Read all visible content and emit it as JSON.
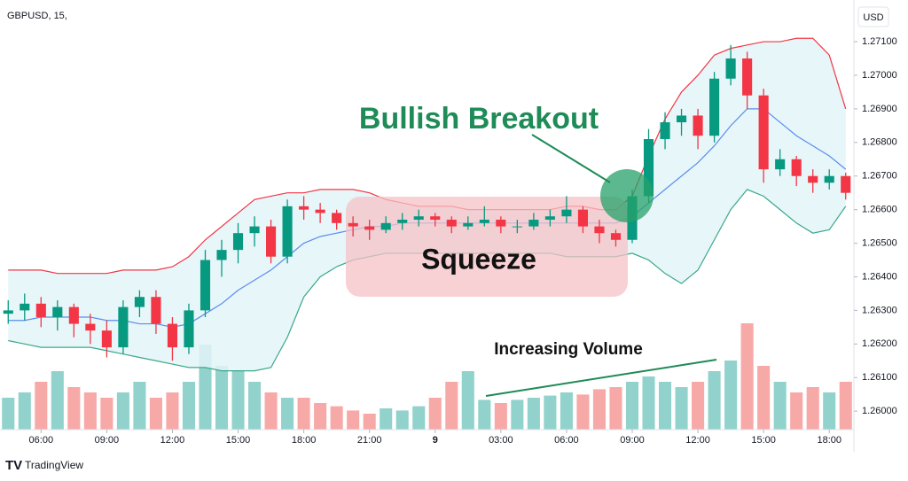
{
  "header": {
    "symbol": "GBPUSD, 15,",
    "currency": "USD"
  },
  "footer": {
    "brand": "TradingView"
  },
  "chart_data": {
    "type": "candlestick",
    "xlim": [
      -0.5,
      51.5
    ],
    "xticks": [
      {
        "value": 2,
        "label": "06:00"
      },
      {
        "value": 6,
        "label": "09:00"
      },
      {
        "value": 10,
        "label": "12:00"
      },
      {
        "value": 14,
        "label": "15:00"
      },
      {
        "value": 18,
        "label": "18:00"
      },
      {
        "value": 22,
        "label": "21:00"
      },
      {
        "value": 26,
        "label": "9"
      },
      {
        "value": 30,
        "label": "03:00"
      },
      {
        "value": 34,
        "label": "06:00"
      },
      {
        "value": 38,
        "label": "09:00"
      },
      {
        "value": 42,
        "label": "12:00"
      },
      {
        "value": 46,
        "label": "15:00"
      },
      {
        "value": 50,
        "label": "18:00"
      }
    ],
    "ylim": [
      1.25945,
      1.27203
    ],
    "yticks": [
      {
        "value": 1.26,
        "label": "1.26000"
      },
      {
        "value": 1.261,
        "label": "1.26100"
      },
      {
        "value": 1.262,
        "label": "1.26200"
      },
      {
        "value": 1.263,
        "label": "1.26300"
      },
      {
        "value": 1.264,
        "label": "1.26400"
      },
      {
        "value": 1.265,
        "label": "1.26500"
      },
      {
        "value": 1.266,
        "label": "1.26600"
      },
      {
        "value": 1.267,
        "label": "1.26700"
      },
      {
        "value": 1.268,
        "label": "1.26800"
      },
      {
        "value": 1.269,
        "label": "1.26900"
      },
      {
        "value": 1.27,
        "label": "1.27000"
      },
      {
        "value": 1.271,
        "label": "1.27100"
      }
    ],
    "grid": false,
    "up_color": "#089981",
    "down_color": "#f23645",
    "volume_up_color": "#92d2cc",
    "volume_down_color": "#f7a9a7",
    "volume_lim": [
      0,
      100
    ],
    "open": [
      1.2629,
      1.263,
      1.2632,
      1.2628,
      1.2631,
      1.2626,
      1.2624,
      1.2619,
      1.2631,
      1.2634,
      1.2626,
      1.2619,
      1.263,
      1.2645,
      1.2648,
      1.2653,
      1.2655,
      1.2646,
      1.2661,
      1.266,
      1.2659,
      1.2656,
      1.2655,
      1.2654,
      1.2656,
      1.2657,
      1.2658,
      1.2657,
      1.2655,
      1.2656,
      1.2657,
      1.2655,
      1.2655,
      1.2657,
      1.2658,
      1.266,
      1.2655,
      1.2653,
      1.2651,
      1.2664,
      1.2681,
      1.2686,
      1.2688,
      1.2682,
      1.2699,
      1.2705,
      1.2694,
      1.2672,
      1.2675,
      1.267,
      1.2668,
      1.267
    ],
    "high": [
      1.2633,
      1.2635,
      1.2634,
      1.2633,
      1.2632,
      1.2629,
      1.2627,
      1.2633,
      1.2636,
      1.2636,
      1.2628,
      1.2632,
      1.2648,
      1.2651,
      1.2656,
      1.2658,
      1.2657,
      1.2663,
      1.2664,
      1.2662,
      1.266,
      1.2658,
      1.2657,
      1.2658,
      1.2659,
      1.266,
      1.2659,
      1.2658,
      1.2658,
      1.2661,
      1.2658,
      1.2657,
      1.2659,
      1.266,
      1.2664,
      1.2661,
      1.2657,
      1.2654,
      1.2666,
      1.2684,
      1.2689,
      1.269,
      1.269,
      1.2701,
      1.2709,
      1.2707,
      1.2696,
      1.2678,
      1.2676,
      1.2672,
      1.2672,
      1.2671
    ],
    "low": [
      1.2626,
      1.2627,
      1.2625,
      1.2624,
      1.2622,
      1.262,
      1.2616,
      1.2617,
      1.2628,
      1.2623,
      1.2615,
      1.2617,
      1.2628,
      1.264,
      1.2644,
      1.2649,
      1.2644,
      1.2644,
      1.2657,
      1.2656,
      1.2654,
      1.2652,
      1.2651,
      1.2653,
      1.2654,
      1.2655,
      1.2655,
      1.2653,
      1.2654,
      1.2655,
      1.2653,
      1.2653,
      1.2654,
      1.2655,
      1.2656,
      1.2653,
      1.265,
      1.2649,
      1.265,
      1.2662,
      1.2678,
      1.2682,
      1.2678,
      1.268,
      1.2697,
      1.269,
      1.2668,
      1.267,
      1.2667,
      1.2665,
      1.2666,
      1.2663
    ],
    "close": [
      1.263,
      1.2632,
      1.2628,
      1.2631,
      1.2626,
      1.2624,
      1.2619,
      1.2631,
      1.2634,
      1.2626,
      1.2619,
      1.263,
      1.2645,
      1.2648,
      1.2653,
      1.2655,
      1.2646,
      1.2661,
      1.266,
      1.2659,
      1.2656,
      1.2655,
      1.2654,
      1.2656,
      1.2657,
      1.2658,
      1.2657,
      1.2655,
      1.2656,
      1.2657,
      1.2655,
      1.2655,
      1.2657,
      1.2658,
      1.266,
      1.2655,
      1.2653,
      1.2651,
      1.2664,
      1.2681,
      1.2686,
      1.2688,
      1.2682,
      1.2699,
      1.2705,
      1.2694,
      1.2672,
      1.2675,
      1.267,
      1.2668,
      1.267,
      1.2665
    ],
    "volume": [
      30,
      35,
      45,
      55,
      40,
      35,
      30,
      35,
      45,
      30,
      35,
      45,
      80,
      60,
      55,
      45,
      35,
      30,
      30,
      25,
      22,
      18,
      15,
      20,
      18,
      22,
      30,
      45,
      55,
      28,
      25,
      28,
      30,
      32,
      35,
      33,
      38,
      40,
      45,
      50,
      45,
      40,
      45,
      55,
      65,
      100,
      60,
      45,
      35,
      40,
      35,
      45
    ],
    "upper_band": {
      "color": "#f23645",
      "values": [
        1.2642,
        1.2642,
        1.2642,
        1.2641,
        1.2641,
        1.2641,
        1.2641,
        1.2642,
        1.2642,
        1.2642,
        1.2643,
        1.2646,
        1.2651,
        1.2655,
        1.2659,
        1.2663,
        1.2664,
        1.2665,
        1.2665,
        1.2666,
        1.2666,
        1.2666,
        1.2665,
        1.2663,
        1.2662,
        1.2661,
        1.2661,
        1.2661,
        1.266,
        1.266,
        1.266,
        1.266,
        1.266,
        1.266,
        1.2661,
        1.2661,
        1.266,
        1.266,
        1.2664,
        1.2676,
        1.2687,
        1.2695,
        1.27,
        1.2706,
        1.2708,
        1.2709,
        1.271,
        1.271,
        1.2711,
        1.2711,
        1.2706,
        1.269
      ]
    },
    "middle_band": {
      "color": "#5b8def",
      "values": [
        1.2627,
        1.2627,
        1.2628,
        1.2628,
        1.2628,
        1.2628,
        1.2627,
        1.2627,
        1.2626,
        1.2626,
        1.2625,
        1.2626,
        1.2629,
        1.2632,
        1.2636,
        1.2639,
        1.2642,
        1.2646,
        1.265,
        1.2652,
        1.2653,
        1.2654,
        1.2655,
        1.2655,
        1.2656,
        1.2656,
        1.2656,
        1.2656,
        1.2656,
        1.2656,
        1.2656,
        1.2656,
        1.2656,
        1.2656,
        1.2656,
        1.2656,
        1.2656,
        1.2656,
        1.2658,
        1.2662,
        1.2666,
        1.267,
        1.2674,
        1.2679,
        1.2685,
        1.269,
        1.269,
        1.2686,
        1.2682,
        1.2679,
        1.2676,
        1.2672
      ]
    },
    "lower_band": {
      "color": "#3aa88a",
      "values": [
        1.2621,
        1.262,
        1.2619,
        1.2619,
        1.2619,
        1.2619,
        1.2618,
        1.2617,
        1.2616,
        1.2615,
        1.2614,
        1.2613,
        1.2613,
        1.2612,
        1.2612,
        1.2612,
        1.2613,
        1.2622,
        1.2634,
        1.264,
        1.2643,
        1.2645,
        1.2646,
        1.2647,
        1.2647,
        1.2647,
        1.2647,
        1.2647,
        1.2647,
        1.2647,
        1.2647,
        1.2647,
        1.2647,
        1.2647,
        1.2646,
        1.2646,
        1.2646,
        1.2646,
        1.2647,
        1.2645,
        1.2641,
        1.2638,
        1.2642,
        1.2651,
        1.266,
        1.2666,
        1.2664,
        1.266,
        1.2656,
        1.2653,
        1.2654,
        1.2661
      ]
    },
    "band_fill": "#e3f4f8",
    "annotations": {
      "breakout": "Bullish Breakout",
      "squeeze": "Squeeze",
      "volume": "Increasing Volume"
    }
  }
}
